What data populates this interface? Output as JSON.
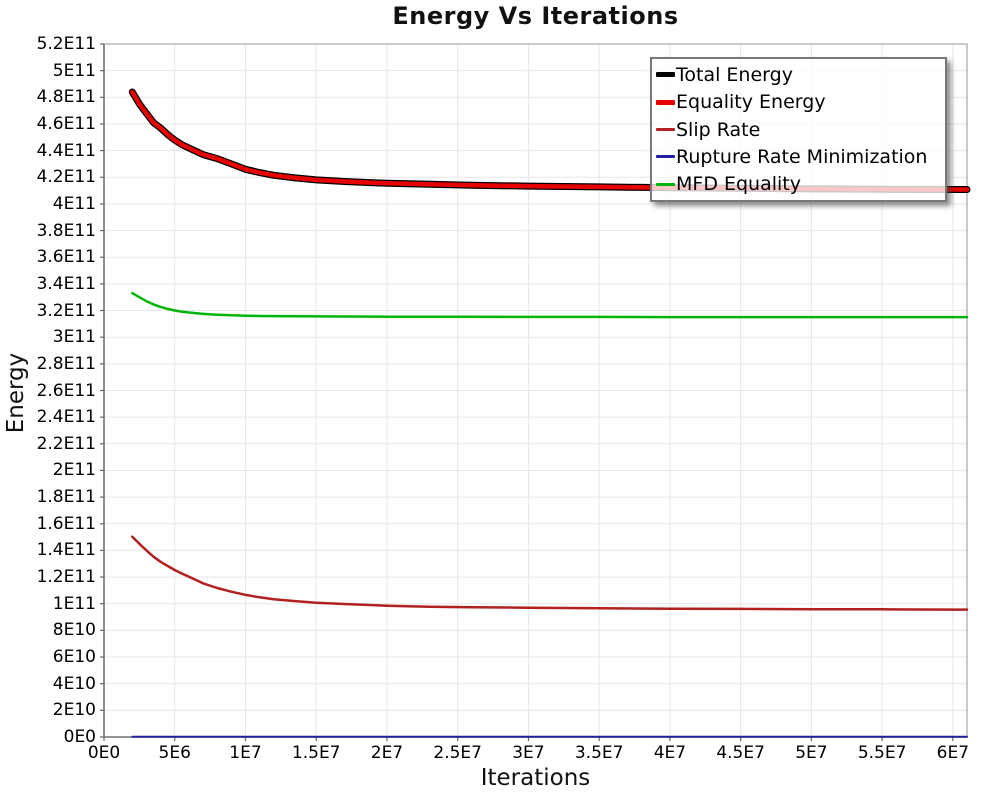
{
  "chart_data": {
    "type": "line",
    "title": "Energy Vs Iterations",
    "xlabel": "Iterations",
    "ylabel": "Energy",
    "xlim": [
      0,
      61000000
    ],
    "ylim": [
      0,
      520000000000
    ],
    "grid": true,
    "legend_position": "top-right",
    "background_color": "#ffffff",
    "grid_color": "#e7e7e7",
    "border_color": "#adadad",
    "axis_line_color": "#666666",
    "x_ticks": [
      {
        "value": 0,
        "label": "0E0"
      },
      {
        "value": 5000000,
        "label": "5E6"
      },
      {
        "value": 10000000,
        "label": "1E7"
      },
      {
        "value": 15000000,
        "label": "1.5E7"
      },
      {
        "value": 20000000,
        "label": "2E7"
      },
      {
        "value": 25000000,
        "label": "2.5E7"
      },
      {
        "value": 30000000,
        "label": "3E7"
      },
      {
        "value": 35000000,
        "label": "3.5E7"
      },
      {
        "value": 40000000,
        "label": "4E7"
      },
      {
        "value": 45000000,
        "label": "4.5E7"
      },
      {
        "value": 50000000,
        "label": "5E7"
      },
      {
        "value": 55000000,
        "label": "5.5E7"
      },
      {
        "value": 60000000,
        "label": "6E7"
      }
    ],
    "y_ticks": [
      {
        "value": 0,
        "label": "0E0"
      },
      {
        "value": 20000000000.0,
        "label": "2E10"
      },
      {
        "value": 40000000000.0,
        "label": "4E10"
      },
      {
        "value": 60000000000.0,
        "label": "6E10"
      },
      {
        "value": 80000000000.0,
        "label": "8E10"
      },
      {
        "value": 100000000000.0,
        "label": "1E11"
      },
      {
        "value": 120000000000.0,
        "label": "1.2E11"
      },
      {
        "value": 140000000000.0,
        "label": "1.4E11"
      },
      {
        "value": 160000000000.0,
        "label": "1.6E11"
      },
      {
        "value": 180000000000.0,
        "label": "1.8E11"
      },
      {
        "value": 200000000000.0,
        "label": "2E11"
      },
      {
        "value": 220000000000.0,
        "label": "2.2E11"
      },
      {
        "value": 240000000000.0,
        "label": "2.4E11"
      },
      {
        "value": 260000000000.0,
        "label": "2.6E11"
      },
      {
        "value": 280000000000.0,
        "label": "2.8E11"
      },
      {
        "value": 300000000000.0,
        "label": "3E11"
      },
      {
        "value": 320000000000.0,
        "label": "3.2E11"
      },
      {
        "value": 340000000000.0,
        "label": "3.4E11"
      },
      {
        "value": 360000000000.0,
        "label": "3.6E11"
      },
      {
        "value": 380000000000.0,
        "label": "3.8E11"
      },
      {
        "value": 400000000000.0,
        "label": "4E11"
      },
      {
        "value": 420000000000.0,
        "label": "4.2E11"
      },
      {
        "value": 440000000000.0,
        "label": "4.4E11"
      },
      {
        "value": 460000000000.0,
        "label": "4.6E11"
      },
      {
        "value": 480000000000.0,
        "label": "4.8E11"
      },
      {
        "value": 500000000000.0,
        "label": "5E11"
      },
      {
        "value": 520000000000.0,
        "label": "5.2E11"
      }
    ],
    "x": [
      2000000.0,
      2500000.0,
      3000000.0,
      3500000.0,
      4000000.0,
      4500000.0,
      5000000.0,
      5500000.0,
      6000000.0,
      7000000.0,
      8000000.0,
      9000000.0,
      10000000.0,
      11000000.0,
      12000000.0,
      13500000.0,
      15000000.0,
      17000000.0,
      20000000.0,
      23000000.0,
      26000000.0,
      30000000.0,
      35000000.0,
      40000000.0,
      45000000.0,
      50000000.0,
      55000000.0,
      60000000.0,
      61000000.0
    ],
    "series": [
      {
        "name": "Total Energy",
        "color": "#000000",
        "line_width": 7,
        "swatch_width": 5,
        "values": [
          484000000000.0,
          475000000000.0,
          468000000000.0,
          461000000000.0,
          457000000000.0,
          452000000000.0,
          448000000000.0,
          444500000000.0,
          442000000000.0,
          437000000000.0,
          434000000000.0,
          430000000000.0,
          426000000000.0,
          423500000000.0,
          421500000000.0,
          419500000000.0,
          418000000000.0,
          416800000000.0,
          415500000000.0,
          414700000000.0,
          414000000000.0,
          413400000000.0,
          412800000000.0,
          412200000000.0,
          411700000000.0,
          411300000000.0,
          411000000000.0,
          410800000000.0,
          410800000000.0
        ]
      },
      {
        "name": "Equality Energy",
        "color": "#e60000",
        "line_width": 4.5,
        "swatch_width": 5,
        "values": [
          484000000000.0,
          475000000000.0,
          468000000000.0,
          461000000000.0,
          457000000000.0,
          452000000000.0,
          448000000000.0,
          444500000000.0,
          442000000000.0,
          437000000000.0,
          434000000000.0,
          430000000000.0,
          426000000000.0,
          423500000000.0,
          421500000000.0,
          419500000000.0,
          418000000000.0,
          416800000000.0,
          415500000000.0,
          414700000000.0,
          414000000000.0,
          413400000000.0,
          412800000000.0,
          412200000000.0,
          411700000000.0,
          411300000000.0,
          411000000000.0,
          410800000000.0,
          410800000000.0
        ]
      },
      {
        "name": "Slip Rate",
        "color": "#b22020",
        "line_width": 2.5,
        "swatch_width": 3,
        "values": [
          150300000000.0,
          145000000000.0,
          140000000000.0,
          135300000000.0,
          131500000000.0,
          128300000000.0,
          125300000000.0,
          122700000000.0,
          120300000000.0,
          115300000000.0,
          111800000000.0,
          109000000000.0,
          106600000000.0,
          104800000000.0,
          103400000000.0,
          102000000000.0,
          100800000000.0,
          99800000000.0,
          98500000000.0,
          97800000000.0,
          97400000000.0,
          97000000000.0,
          96600000000.0,
          96300000000.0,
          96100000000.0,
          95900000000.0,
          95800000000.0,
          95600000000.0,
          95600000000.0
        ]
      },
      {
        "name": "Rupture Rate Minimization",
        "color": "#2020a0",
        "line_width": 2,
        "swatch_width": 3,
        "values": [
          200000000.0,
          200000000.0,
          200000000.0,
          200000000.0,
          200000000.0,
          200000000.0,
          200000000.0,
          200000000.0,
          200000000.0,
          200000000.0,
          200000000.0,
          200000000.0,
          200000000.0,
          200000000.0,
          200000000.0,
          200000000.0,
          200000000.0,
          200000000.0,
          200000000.0,
          200000000.0,
          200000000.0,
          200000000.0,
          200000000.0,
          200000000.0,
          200000000.0,
          200000000.0,
          200000000.0,
          200000000.0,
          200000000.0
        ]
      },
      {
        "name": "MFD Equality",
        "color": "#00b40c",
        "line_width": 2.5,
        "swatch_width": 3,
        "values": [
          333000000000.0,
          330000000000.0,
          327000000000.0,
          324600000000.0,
          322700000000.0,
          321200000000.0,
          320000000000.0,
          319200000000.0,
          318500000000.0,
          317500000000.0,
          316900000000.0,
          316400000000.0,
          316100000000.0,
          315900000000.0,
          315800000000.0,
          315700000000.0,
          315600000000.0,
          315500000000.0,
          315400000000.0,
          315300000000.0,
          315300000000.0,
          315200000000.0,
          315200000000.0,
          315100000000.0,
          315100000000.0,
          315100000000.0,
          315100000000.0,
          315100000000.0,
          315100000000.0
        ]
      }
    ]
  }
}
